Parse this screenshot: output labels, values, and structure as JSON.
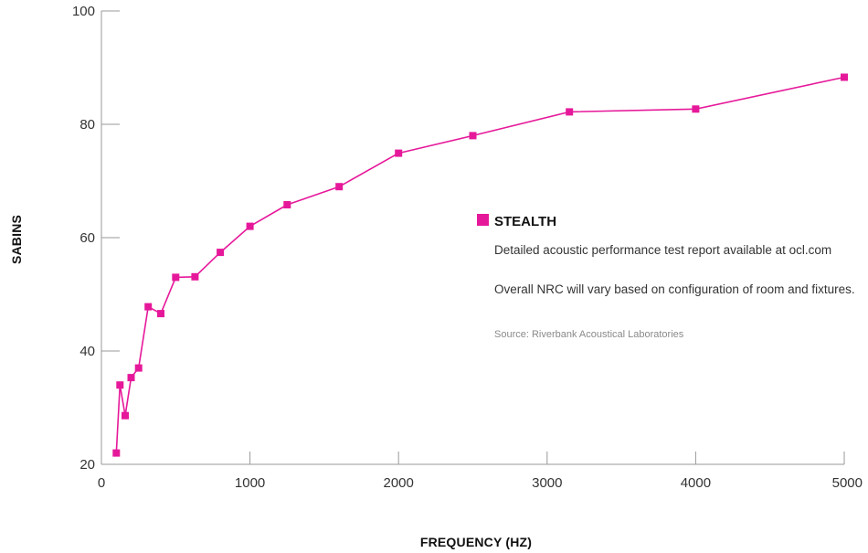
{
  "chart_data": {
    "type": "line",
    "xlabel": "FREQUENCY (HZ)",
    "ylabel": "SABINS",
    "xlim": [
      0,
      5000
    ],
    "ylim": [
      20,
      100
    ],
    "xticks": [
      0,
      1000,
      2000,
      3000,
      4000,
      5000
    ],
    "yticks": [
      20,
      40,
      60,
      80,
      100
    ],
    "grid": false,
    "legend_position": "right",
    "colors": {
      "series": "#e6189a",
      "axis": "#999999"
    },
    "series": [
      {
        "name": "STEALTH",
        "x": [
          100,
          125,
          160,
          200,
          250,
          315,
          400,
          500,
          630,
          800,
          1000,
          1250,
          1600,
          2000,
          2500,
          3150,
          4000,
          5000
        ],
        "y": [
          22,
          34,
          28.6,
          35.3,
          37,
          47.8,
          46.6,
          53,
          53.1,
          57.4,
          62,
          65.8,
          69,
          74.9,
          78,
          82.2,
          82.7,
          88.3
        ]
      }
    ],
    "annotations": [
      "Detailed acoustic performance test report available at ocl.com",
      "Overall NRC will vary based on configuration of room and fixtures."
    ],
    "source": "Source: Riverbank Acoustical Laboratories"
  }
}
